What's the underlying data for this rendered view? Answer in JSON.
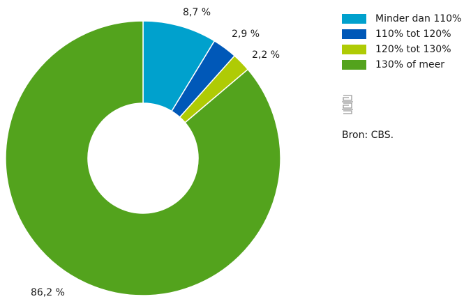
{
  "chart_data": {
    "type": "pie",
    "donut": true,
    "categories": [
      "Minder dan 110%",
      "110% tot 120%",
      "120% tot 130%",
      "130% of meer"
    ],
    "values": [
      8.7,
      2.9,
      2.2,
      86.2
    ],
    "labels": [
      "8,7 %",
      "2,9 %",
      "2,2 %",
      "86,2 %"
    ],
    "colors": [
      "#00a1cd",
      "#0058b8",
      "#afcb05",
      "#53a31d"
    ],
    "legend_position": "right"
  },
  "logo_icon": "cbs-logo-icon",
  "source": "Bron: CBS."
}
